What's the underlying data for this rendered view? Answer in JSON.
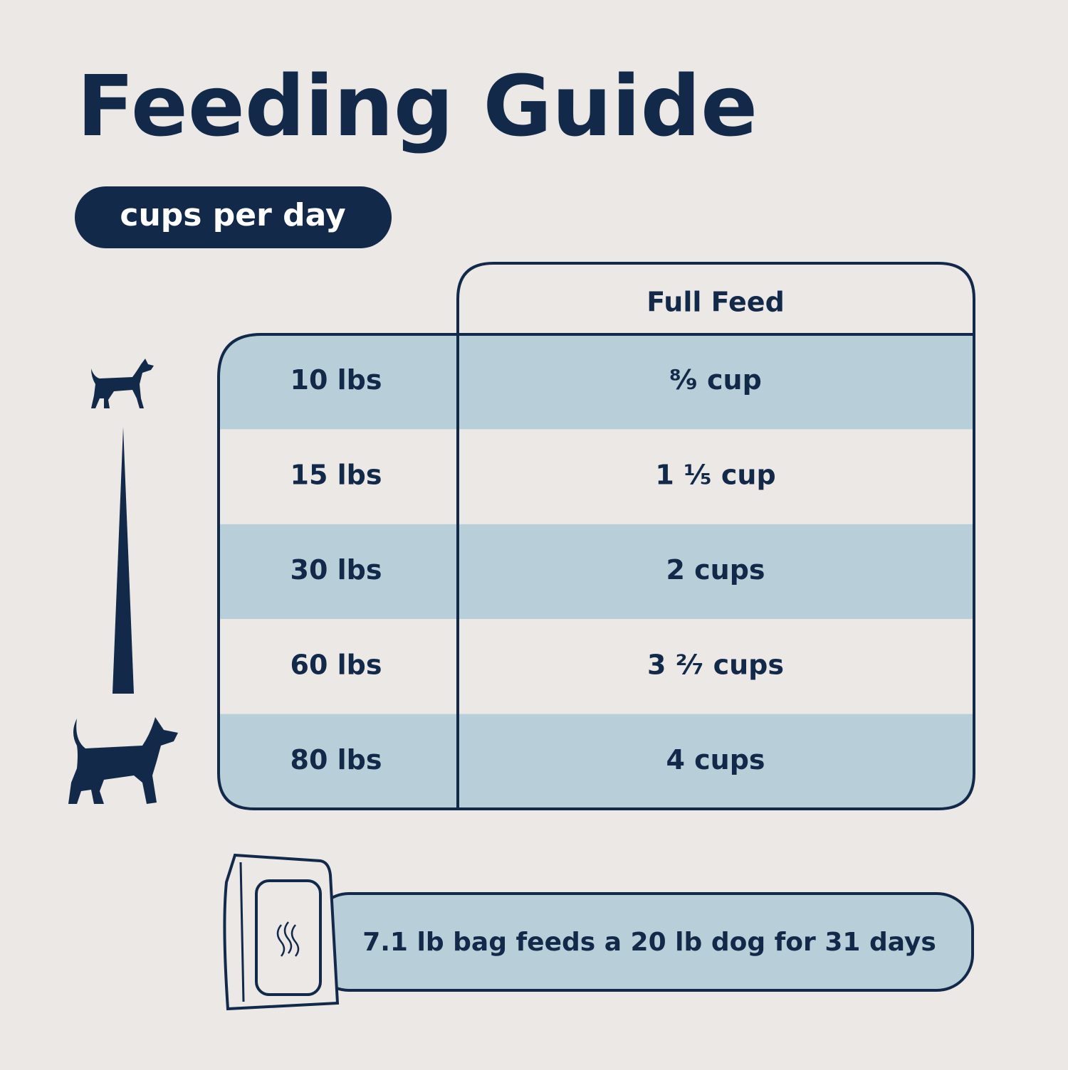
{
  "header": {
    "title": "Feeding Guide",
    "badge": "cups per day"
  },
  "table": {
    "column_header": "Full Feed",
    "rows": [
      {
        "weight": "10 lbs",
        "amount": "⁸⁄₉ cup"
      },
      {
        "weight": "15 lbs",
        "amount": "1 ¹⁄₅ cup"
      },
      {
        "weight": "30 lbs",
        "amount": "2 cups"
      },
      {
        "weight": "60 lbs",
        "amount": "3 ²⁄₇ cups"
      },
      {
        "weight": "80 lbs",
        "amount": "4 cups"
      }
    ]
  },
  "footer": {
    "note": "7.1 lb bag feeds a 20 lb dog for 31 days"
  }
}
